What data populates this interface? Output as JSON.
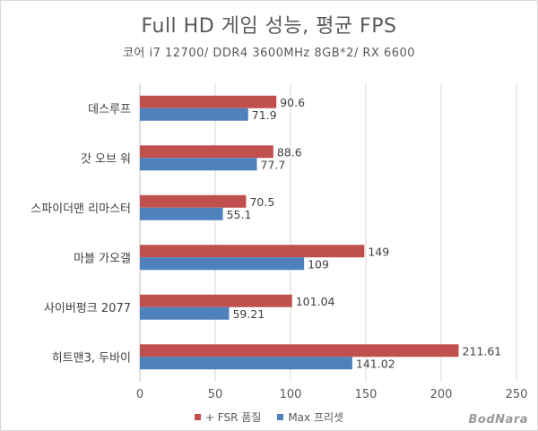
{
  "chart_data": {
    "type": "bar",
    "orientation": "horizontal",
    "title": "Full HD 게임 성능, 평균 FPS",
    "subtitle": "코어 i7 12700/ DDR4 3600MHz 8GB*2/ RX 6600",
    "categories": [
      "데스루프",
      "갓 오브 워",
      "스파이더맨 리마스터",
      "마블 가오갤",
      "사이버펑크 2077",
      "히트맨3, 두바이"
    ],
    "series": [
      {
        "name": "+ FSR 품질",
        "values": [
          90.6,
          88.6,
          70.5,
          149,
          101.04,
          211.61
        ],
        "labels": [
          "90.6",
          "88.6",
          "70.5",
          "149",
          "101.04",
          "211.61"
        ],
        "color": "#c0504d"
      },
      {
        "name": "Max 프리셋",
        "values": [
          71.9,
          77.7,
          55.1,
          109,
          59.21,
          141.02
        ],
        "labels": [
          "71.9",
          "77.7",
          "55.1",
          "109",
          "59.21",
          "141.02"
        ],
        "color": "#4f81bd"
      }
    ],
    "xlim": [
      0,
      250
    ],
    "xticks": [
      "0",
      "50",
      "100",
      "150",
      "200",
      "250"
    ],
    "grid": true,
    "legend": "bottom"
  },
  "watermark": "BodNara"
}
